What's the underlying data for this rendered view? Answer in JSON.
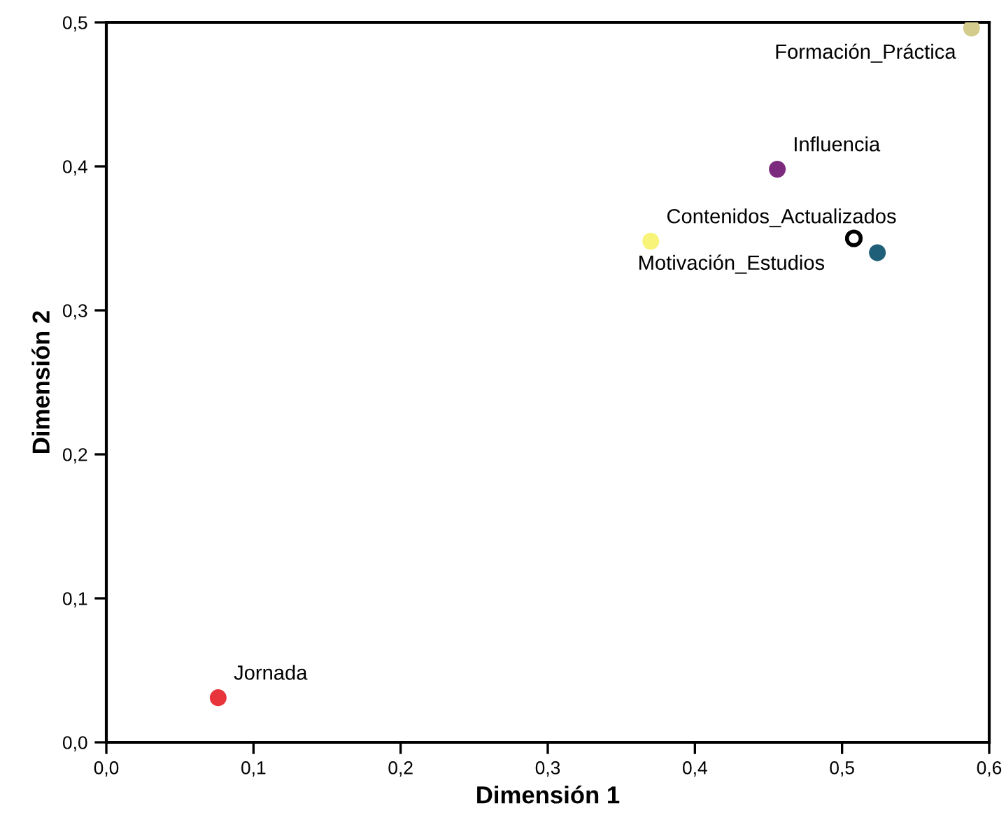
{
  "chart_data": {
    "type": "scatter",
    "xlabel": "Dimensión 1",
    "ylabel": "Dimensión 2",
    "series": [
      {
        "x": [
          0.588,
          0.456,
          0.37,
          0.524,
          0.076
        ],
        "values": [
          0.496,
          0.398,
          0.348,
          0.34,
          0.031
        ],
        "colors": [
          "#d4cc8c",
          "#7b2a7e",
          "#f8f47a",
          "#1f5f78",
          "#e8353c"
        ]
      },
      {
        "x": [
          0.508
        ],
        "values": [
          0.35
        ],
        "color": "#000000"
      }
    ],
    "annotations": [
      {
        "text": "Formación_Práctica",
        "x": 0.588,
        "y": 0.496
      },
      {
        "text": "Influencia",
        "x": 0.456,
        "y": 0.398
      },
      {
        "text": "Contenidos_Actualizados",
        "x": 0.37,
        "y": 0.348
      },
      {
        "text": "Motivación_Estudios",
        "x": 0.524,
        "y": 0.34
      },
      {
        "text": "Jornada",
        "x": 0.076,
        "y": 0.031
      }
    ],
    "xlim": [
      0,
      0.6
    ],
    "ylim": [
      0,
      0.5
    ],
    "xticks": [
      {
        "value": 0,
        "label": "0,0"
      },
      {
        "value": 0.1,
        "label": "0,1"
      },
      {
        "value": 0.2,
        "label": "0,2"
      },
      {
        "value": 0.3,
        "label": "0,3"
      },
      {
        "value": 0.4,
        "label": "0,4"
      },
      {
        "value": 0.5,
        "label": "0,5"
      },
      {
        "value": 0.6,
        "label": "0,6"
      }
    ],
    "yticks": [
      {
        "value": 0,
        "label": "0,0"
      },
      {
        "value": 0.1,
        "label": "0,1"
      },
      {
        "value": 0.2,
        "label": "0,2"
      },
      {
        "value": 0.3,
        "label": "0,3"
      },
      {
        "value": 0.4,
        "label": "0,4"
      },
      {
        "value": 0.5,
        "label": "0,5"
      }
    ],
    "grid": false,
    "legend": false,
    "marker": "circle"
  }
}
